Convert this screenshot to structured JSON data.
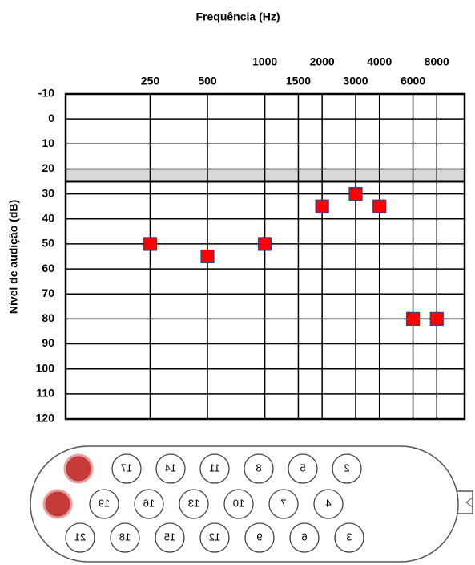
{
  "chart_data": {
    "type": "scatter",
    "title": "Frequência (Hz)",
    "y_label": "Nível de audição  (dB)",
    "x": [
      250,
      500,
      1000,
      2000,
      3000,
      4000,
      6000,
      8000
    ],
    "values": [
      50,
      55,
      50,
      35,
      30,
      35,
      80,
      80
    ],
    "color": "#ff0000",
    "edge_color": "#2a3f9e",
    "marker": "square",
    "xscale": "log",
    "xlim": [
      90,
      11200
    ],
    "xticks": [
      250,
      500,
      1000,
      1500,
      2000,
      3000,
      4000,
      6000,
      8000
    ],
    "ylim": [
      -10,
      120
    ],
    "yticks": [
      -10,
      0,
      10,
      20,
      30,
      40,
      50,
      60,
      70,
      80,
      90,
      100,
      110,
      120
    ],
    "y_inverted": true,
    "grid": true,
    "shaded_band": [
      20,
      25
    ]
  },
  "electrode_array": {
    "rows": [
      [
        "17",
        "14",
        "11",
        "8",
        "5",
        "2"
      ],
      [
        "19",
        "16",
        "13",
        "10",
        "7",
        "4"
      ],
      [
        "21",
        "18",
        "15",
        "12",
        "9",
        "6",
        "3"
      ]
    ]
  }
}
